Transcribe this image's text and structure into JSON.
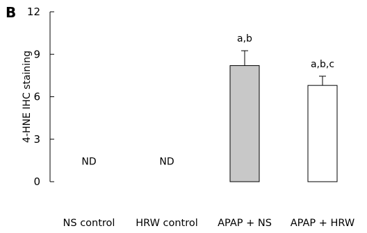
{
  "panel_label": "B",
  "chart_data": {
    "type": "bar",
    "categories": [
      "NS control",
      "HRW control",
      "APAP + NS",
      "APAP + HRW"
    ],
    "values": [
      null,
      null,
      8.2,
      6.8
    ],
    "errors": [
      null,
      null,
      1.05,
      0.65
    ],
    "annotations": [
      "ND",
      "ND",
      "a,b",
      "a,b,c"
    ],
    "bar_colors": [
      "#ffffff",
      "#ffffff",
      "#c8c8c8",
      "#ffffff"
    ],
    "title": "",
    "xlabel": "",
    "ylabel": "4-HNE IHC staining",
    "ylim": [
      0,
      12
    ],
    "yticks": [
      0,
      3,
      6,
      9,
      12
    ],
    "grid": false
  }
}
